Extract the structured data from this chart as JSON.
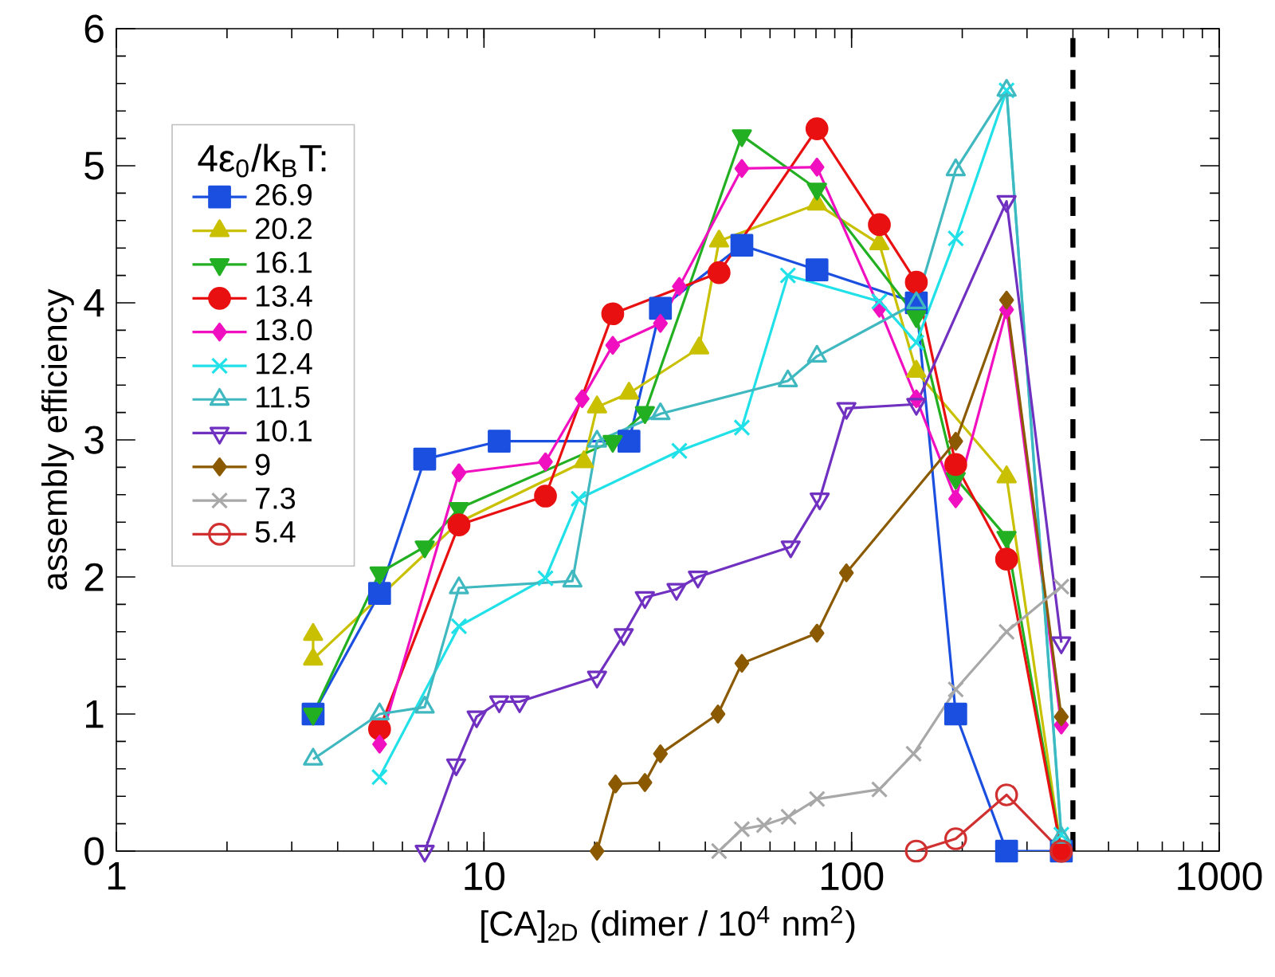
{
  "chart_data": {
    "type": "line",
    "xlabel": "[CA]$_{2D}$ (dimer / 10$^{4}$ nm$^{2}$)",
    "ylabel": "assembly efficiency",
    "legend_title": "4ε$_{0}$/k$_{B}$T:",
    "log": "x",
    "xlim": [
      1,
      1000
    ],
    "xticks": [
      1,
      10,
      100,
      1000
    ],
    "ylim": [
      0,
      6
    ],
    "yticks": [
      0,
      1,
      2,
      3,
      4,
      5,
      6
    ],
    "legend": "top left",
    "grid": false,
    "ref_lines": [
      {
        "axis": "x",
        "value": 400,
        "color": "#000000",
        "line_style": "dashed"
      }
    ],
    "series": [
      {
        "name": "26.9",
        "color": "#1a4fe0",
        "marker": "square",
        "x": [
          3.43,
          5.2,
          6.9,
          11,
          24.8,
          30.2,
          50.3,
          80.5,
          150,
          192,
          264,
          372
        ],
        "values": [
          1.0,
          1.88,
          2.86,
          2.99,
          2.99,
          3.96,
          4.42,
          4.24,
          4.0,
          1.0,
          0,
          0
        ]
      },
      {
        "name": "20.2",
        "color": "#c8c000",
        "marker": "triangle",
        "x": [
          3.43,
          3.43,
          5.2,
          8.55,
          18.7,
          20.3,
          24.8,
          38.5,
          43.6,
          80.5,
          119,
          150,
          264,
          372
        ],
        "values": [
          1.58,
          1.4,
          null,
          2.4,
          2.84,
          3.24,
          3.34,
          3.67,
          4.45,
          4.72,
          4.43,
          3.5,
          2.73,
          0
        ]
      },
      {
        "name": "16.1",
        "color": "#22b022",
        "marker": "triangle-down",
        "x": [
          3.43,
          5.2,
          6.9,
          8.55,
          22.4,
          27.4,
          50.3,
          80.5,
          150,
          192,
          264,
          372
        ],
        "values": [
          1.0,
          2.03,
          2.22,
          2.5,
          2.99,
          3.2,
          5.22,
          4.83,
          3.9,
          2.72,
          2.29,
          0
        ]
      },
      {
        "name": "13.4",
        "color": "#e81010",
        "marker": "circle",
        "x": [
          5.2,
          8.55,
          14.7,
          22.4,
          43.6,
          80.5,
          119,
          150,
          192,
          264,
          372
        ],
        "values": [
          0.89,
          2.38,
          2.59,
          3.92,
          4.22,
          5.27,
          4.57,
          4.15,
          2.82,
          2.13,
          0
        ]
      },
      {
        "name": "13.0",
        "color": "#f010c0",
        "marker": "diamond",
        "x": [
          5.2,
          8.55,
          14.7,
          18.5,
          22.4,
          30.2,
          34,
          50.3,
          80.5,
          119,
          150,
          192,
          264,
          372
        ],
        "values": [
          0.78,
          2.76,
          2.84,
          3.3,
          3.69,
          3.85,
          4.12,
          4.98,
          4.99,
          3.96,
          3.3,
          2.57,
          3.95,
          0.92
        ]
      },
      {
        "name": "12.4",
        "color": "#20e0e8",
        "marker": "cross",
        "x": [
          5.2,
          8.55,
          14.7,
          18.1,
          34,
          50.3,
          67.1,
          119,
          150,
          192,
          264,
          372
        ],
        "values": [
          0.54,
          1.64,
          1.99,
          2.57,
          2.92,
          3.09,
          4.2,
          4.01,
          3.71,
          4.47,
          5.55,
          0.12
        ]
      },
      {
        "name": "11.5",
        "color": "#40b8c0",
        "marker": "triangle-open",
        "x": [
          3.43,
          5.2,
          6.9,
          8.55,
          17.4,
          20.3,
          30.2,
          67.1,
          80.5,
          150,
          192,
          264,
          372
        ],
        "values": [
          0.67,
          1.0,
          1.05,
          1.92,
          1.97,
          2.99,
          3.19,
          3.43,
          3.61,
          4.0,
          4.97,
          5.55,
          0.1
        ]
      },
      {
        "name": "10.1",
        "color": "#7030c0",
        "marker": "triangle-down-open",
        "x": [
          6.9,
          8.4,
          9.55,
          11,
          12.5,
          20.3,
          24,
          27.4,
          33.4,
          38.2,
          68.3,
          81.9,
          96.8,
          150,
          264,
          372
        ],
        "values": [
          0,
          0.63,
          0.98,
          1.09,
          1.09,
          1.27,
          1.58,
          1.85,
          1.91,
          2.0,
          2.22,
          2.57,
          3.23,
          3.26,
          4.74,
          1.52
        ]
      },
      {
        "name": "9",
        "color": "#8b5a00",
        "marker": "diamond",
        "x": [
          20.3,
          22.8,
          27.4,
          30.2,
          43.3,
          50.3,
          80.5,
          96.8,
          192,
          264,
          372
        ],
        "values": [
          0,
          0.49,
          0.5,
          0.71,
          1.0,
          1.37,
          1.59,
          2.03,
          2.99,
          4.02,
          0.98
        ]
      },
      {
        "name": "7.3",
        "color": "#a8a8a8",
        "marker": "cross",
        "x": [
          43.6,
          50.3,
          57.8,
          67.4,
          80.5,
          119,
          147.5,
          192,
          264,
          372
        ],
        "values": [
          0,
          0.16,
          0.19,
          0.25,
          0.38,
          0.45,
          0.71,
          1.18,
          1.6,
          1.93
        ]
      },
      {
        "name": "5.4",
        "color": "#d03030",
        "marker": "circle-open",
        "x": [
          150,
          192,
          264,
          372
        ],
        "values": [
          0,
          0.09,
          0.41,
          0
        ]
      }
    ]
  }
}
